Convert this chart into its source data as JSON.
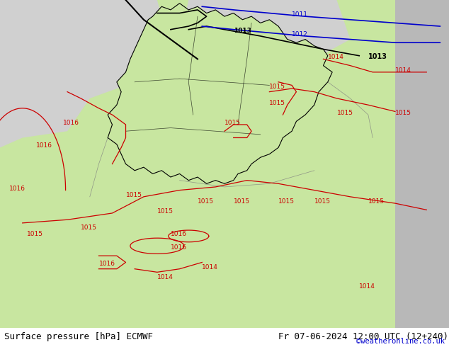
{
  "title_left": "Surface pressure [hPa] ECMWF",
  "title_right": "Fr 07-06-2024 12:00 UTC (12+240)",
  "watermark": "©weatheronline.co.uk",
  "bg_color": "#c8e6a0",
  "land_color": "#c8e6a0",
  "sea_color": "#d0d0d0",
  "border_color": "#000000",
  "isobar_color_red": "#cc0000",
  "isobar_color_blue": "#0000cc",
  "isobar_color_black": "#000000",
  "figsize": [
    6.34,
    4.9
  ],
  "dpi": 100,
  "bottom_bar_color": "#c8daf0",
  "bottom_bar_height": 0.055,
  "label_fontsize": 9,
  "watermark_color": "#0000cc",
  "title_fontsize": 9
}
